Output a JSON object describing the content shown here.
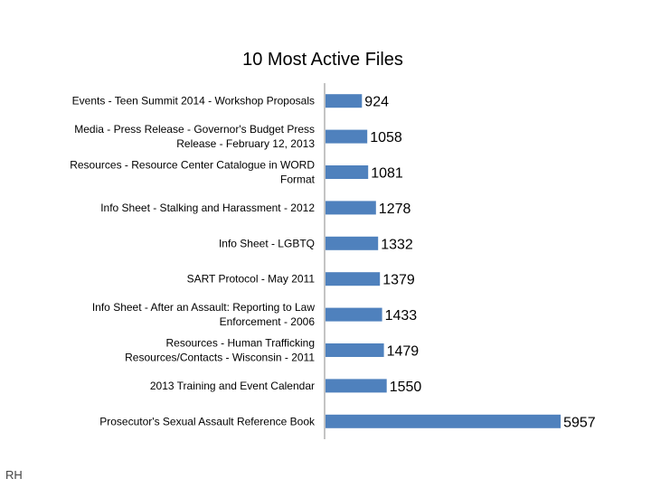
{
  "footer": {
    "text": "RH"
  },
  "chart_data": {
    "type": "bar",
    "orientation": "horizontal",
    "title": "10 Most Active Files",
    "xlabel": "",
    "ylabel": "",
    "grid": false,
    "legend": "none",
    "xlim": [
      0,
      6000
    ],
    "bar_color": "#4f81bd",
    "categories": [
      [
        "Events - Teen Summit 2014 - Workshop Proposals"
      ],
      [
        "Media - Press Release - Governor's Budget Press",
        "Release - February 12, 2013"
      ],
      [
        "Resources - Resource Center Catalogue in WORD",
        "Format"
      ],
      [
        "Info Sheet - Stalking and Harassment - 2012"
      ],
      [
        "Info Sheet - LGBTQ"
      ],
      [
        "SART Protocol - May 2011"
      ],
      [
        "Info Sheet - After an Assault: Reporting to Law",
        "Enforcement - 2006"
      ],
      [
        "Resources - Human Trafficking",
        "Resources/Contacts - Wisconsin - 2011"
      ],
      [
        "2013 Training and Event Calendar"
      ],
      [
        "Prosecutor's Sexual Assault Reference Book"
      ]
    ],
    "values": [
      924,
      1058,
      1081,
      1278,
      1332,
      1379,
      1433,
      1479,
      1550,
      5957
    ]
  }
}
